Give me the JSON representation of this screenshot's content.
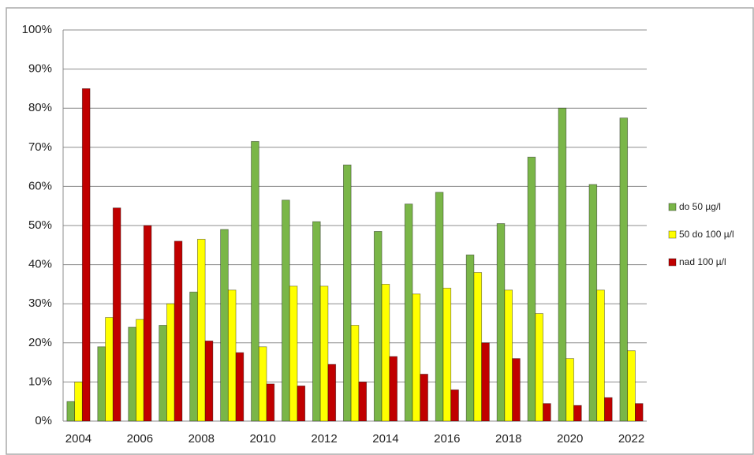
{
  "chart_data": {
    "type": "bar",
    "categories": [
      "2004",
      null,
      "2006",
      null,
      "2008",
      null,
      "2010",
      null,
      "2012",
      null,
      "2014",
      null,
      "2016",
      null,
      "2018",
      null,
      "2020",
      null,
      "2022"
    ],
    "series": [
      {
        "name": "do 50 µg/l",
        "color": "#7ab648",
        "values": [
          5,
          19,
          24,
          24.5,
          33,
          49,
          71.5,
          56.5,
          51,
          65.5,
          48.5,
          55.5,
          58.5,
          42.5,
          50.5,
          67.5,
          80,
          60.5,
          77.5
        ]
      },
      {
        "name": "50 do 100 µ/l",
        "color": "#ffff00",
        "values": [
          10,
          26.5,
          26,
          30,
          46.5,
          33.5,
          19,
          34.5,
          34.5,
          24.5,
          35,
          32.5,
          34,
          38,
          33.5,
          27.5,
          16,
          33.5,
          18
        ]
      },
      {
        "name": "nad 100 µ/l",
        "color": "#c00000",
        "values": [
          85,
          54.5,
          50,
          46,
          20.5,
          17.5,
          9.5,
          9,
          14.5,
          10,
          16.5,
          12,
          8,
          20,
          16,
          4.5,
          4,
          6,
          4.5
        ]
      }
    ],
    "ylim": [
      0,
      100
    ],
    "yticks": [
      {
        "value": 0,
        "label": "0%"
      },
      {
        "value": 10,
        "label": "10%"
      },
      {
        "value": 20,
        "label": "20%"
      },
      {
        "value": 30,
        "label": "30%"
      },
      {
        "value": 40,
        "label": "40%"
      },
      {
        "value": 50,
        "label": "50%"
      },
      {
        "value": 60,
        "label": "60%"
      },
      {
        "value": 70,
        "label": "70%"
      },
      {
        "value": 80,
        "label": "80%"
      },
      {
        "value": 90,
        "label": "90%"
      },
      {
        "value": 100,
        "label": "100%"
      }
    ],
    "grid": true,
    "legend": "right"
  }
}
